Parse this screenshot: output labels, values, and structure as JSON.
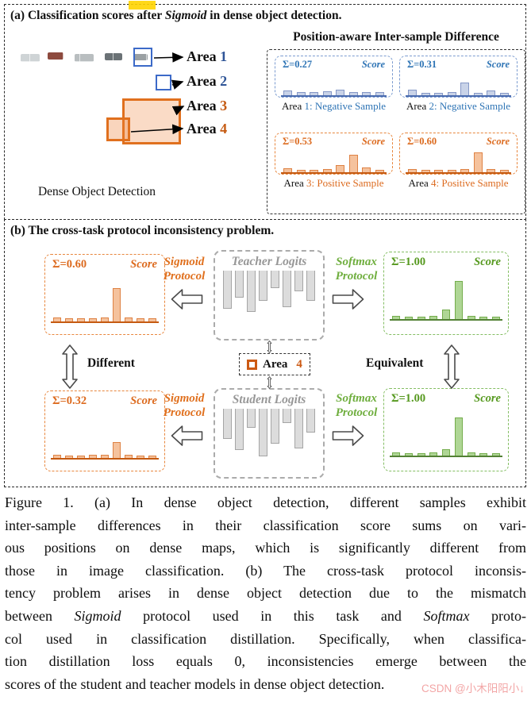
{
  "panel_a": {
    "title_pre": "(a) Classification scores after ",
    "title_italic": "Sigmoid",
    "title_post": " in dense object detection.",
    "photo_caption": "Dense Object Detection",
    "right_title": "Position-aware Inter-sample Difference",
    "area_labels": [
      {
        "word": "Area",
        "num": "1",
        "theme": "blue"
      },
      {
        "word": "Area",
        "num": "2",
        "theme": "blue"
      },
      {
        "word": "Area",
        "num": "3",
        "theme": "orange"
      },
      {
        "word": "Area",
        "num": "4",
        "theme": "orange"
      }
    ],
    "charts": [
      {
        "sum": "Σ=0.27",
        "score": "Score",
        "caption_prefix": "Area",
        "caption_rest": " 1: Negative Sample",
        "theme": "blue",
        "bars": [
          6,
          4,
          4,
          5,
          7,
          4,
          4,
          4
        ]
      },
      {
        "sum": "Σ=0.31",
        "score": "Score",
        "caption_prefix": "Area",
        "caption_rest": " 2: Negative Sample",
        "theme": "blue",
        "bars": [
          7,
          3,
          3,
          4,
          16,
          3,
          6,
          3
        ]
      },
      {
        "sum": "Σ=0.53",
        "score": "Score",
        "caption_prefix": "Area",
        "caption_rest": " 3: Positive Sample",
        "theme": "orange",
        "bars": [
          5,
          3,
          3,
          4,
          9,
          22,
          6,
          3
        ]
      },
      {
        "sum": "Σ=0.60",
        "score": "Score",
        "caption_prefix": "Area",
        "caption_rest": " 4: Positive Sample",
        "theme": "orange",
        "bars": [
          4,
          3,
          3,
          3,
          4,
          25,
          4,
          3
        ]
      }
    ]
  },
  "panel_b": {
    "title": "(b) The cross-task protocol inconsistency problem.",
    "sigmoid_protocol": "Sigmoid Protocol",
    "softmax_protocol": "Softmax Protocol",
    "different_label": "Different",
    "equivalent_label": "Equivalent",
    "teacher_label": "Teacher Logits",
    "student_label": "Student Logits",
    "teacher_bars": [
      48,
      34,
      52,
      38,
      22,
      46,
      26,
      38
    ],
    "student_bars": [
      38,
      52,
      24,
      60,
      44,
      18,
      50,
      30
    ],
    "badge": {
      "word": "Area",
      "num": "4"
    },
    "charts": [
      {
        "sum": "Σ=0.60",
        "score": "Score",
        "theme": "orange",
        "bars": [
          5,
          4,
          4,
          4,
          5,
          42,
          5,
          4,
          4
        ]
      },
      {
        "sum": "Σ=1.00",
        "score": "Score",
        "theme": "green",
        "bars": [
          4,
          3,
          3,
          4,
          12,
          48,
          4,
          3,
          3
        ]
      },
      {
        "sum": "Σ=0.32",
        "score": "Score",
        "theme": "orange",
        "bars": [
          4,
          3,
          3,
          4,
          4,
          20,
          4,
          3,
          3
        ]
      },
      {
        "sum": "Σ=1.00",
        "score": "Score",
        "theme": "green",
        "bars": [
          4,
          3,
          3,
          4,
          8,
          48,
          4,
          3,
          3
        ]
      }
    ]
  },
  "caption": {
    "lines": [
      [
        {
          "t": "Figure 1. (a) In dense object detection, different samples exhibit"
        }
      ],
      [
        {
          "t": "inter-sample differences in their classification score sums on vari-"
        }
      ],
      [
        {
          "t": "ous positions on dense maps, which is significantly different from"
        }
      ],
      [
        {
          "t": "those in image classification. (b) The cross-task protocol inconsis-"
        }
      ],
      [
        {
          "t": "tency problem arises in dense object detection due to the mismatch"
        }
      ],
      [
        {
          "t": "between "
        },
        {
          "t": "Sigmoid",
          "i": true
        },
        {
          "t": " protocol used in this task and "
        },
        {
          "t": "Softmax",
          "i": true
        },
        {
          "t": " proto-"
        }
      ],
      [
        {
          "t": "col used in classification distillation. Specifically, when classifica-"
        }
      ],
      [
        {
          "t": "tion distillation loss equals 0, inconsistencies emerge between the"
        }
      ],
      [
        {
          "t": "scores of the student and teacher models in dense object detection."
        }
      ]
    ]
  },
  "watermark": "CSDN @小木阳阳小↓",
  "chart_data": [
    {
      "type": "bar",
      "title": "Area 1: Negative Sample",
      "annotation": "Σ=0.27",
      "ylabel": "Score",
      "values": [
        6,
        4,
        4,
        5,
        7,
        4,
        4,
        4
      ],
      "note": "relative bar heights, axes unlabeled"
    },
    {
      "type": "bar",
      "title": "Area 2: Negative Sample",
      "annotation": "Σ=0.31",
      "ylabel": "Score",
      "values": [
        7,
        3,
        3,
        4,
        16,
        3,
        6,
        3
      ]
    },
    {
      "type": "bar",
      "title": "Area 3: Positive Sample",
      "annotation": "Σ=0.53",
      "ylabel": "Score",
      "values": [
        5,
        3,
        3,
        4,
        9,
        22,
        6,
        3
      ]
    },
    {
      "type": "bar",
      "title": "Area 4: Positive Sample",
      "annotation": "Σ=0.60",
      "ylabel": "Score",
      "values": [
        4,
        3,
        3,
        3,
        4,
        25,
        4,
        3
      ]
    },
    {
      "type": "bar",
      "title": "Teacher Sigmoid Score",
      "annotation": "Σ=0.60",
      "ylabel": "Score",
      "values": [
        5,
        4,
        4,
        4,
        5,
        42,
        5,
        4,
        4
      ]
    },
    {
      "type": "bar",
      "title": "Teacher Softmax Score",
      "annotation": "Σ=1.00",
      "ylabel": "Score",
      "values": [
        4,
        3,
        3,
        4,
        12,
        48,
        4,
        3,
        3
      ]
    },
    {
      "type": "bar",
      "title": "Student Sigmoid Score",
      "annotation": "Σ=0.32",
      "ylabel": "Score",
      "values": [
        4,
        3,
        3,
        4,
        4,
        20,
        4,
        3,
        3
      ]
    },
    {
      "type": "bar",
      "title": "Student Softmax Score",
      "annotation": "Σ=1.00",
      "ylabel": "Score",
      "values": [
        4,
        3,
        3,
        4,
        8,
        48,
        4,
        3,
        3
      ]
    },
    {
      "type": "bar",
      "title": "Teacher Logits",
      "values": [
        48,
        34,
        52,
        38,
        22,
        46,
        26,
        38
      ],
      "note": "downward gray logit bars"
    },
    {
      "type": "bar",
      "title": "Student Logits",
      "values": [
        38,
        52,
        24,
        60,
        44,
        18,
        50,
        30
      ],
      "note": "downward gray logit bars"
    }
  ]
}
